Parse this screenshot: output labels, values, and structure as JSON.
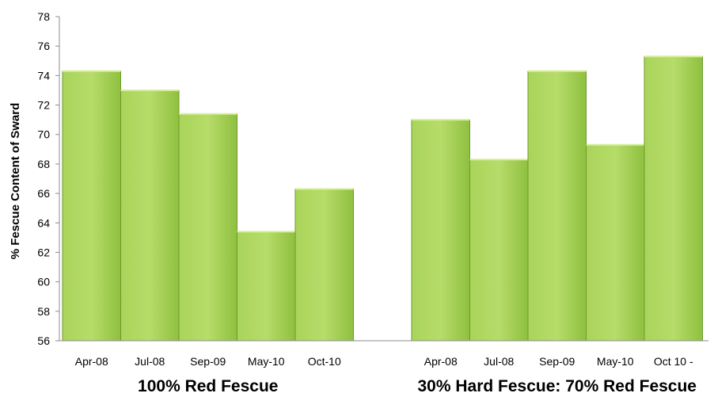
{
  "chart_data": {
    "type": "bar",
    "title": "",
    "ylabel": "% Fescue Content of Sward",
    "ylim": [
      56,
      78
    ],
    "yticks": [
      56,
      58,
      60,
      62,
      64,
      66,
      68,
      70,
      72,
      74,
      76,
      78
    ],
    "grid": false,
    "colors": {
      "bar": "#9acd4a",
      "bar_edge": "#6e9a2e",
      "axis": "#8c8c8c"
    },
    "groups": [
      {
        "label": "100% Red Fescue",
        "categories": [
          "Apr-08",
          "Jul-08",
          "Sep-09",
          "May-10",
          "Oct-10"
        ],
        "values": [
          74.3,
          73.0,
          71.4,
          63.4,
          66.3
        ]
      },
      {
        "label": "30% Hard Fescue: 70% Red Fescue",
        "categories": [
          "Apr-08",
          "Jul-08",
          "Sep-09",
          "May-10",
          "Oct 10 -"
        ],
        "values": [
          71.0,
          68.3,
          74.3,
          69.3,
          75.3
        ]
      }
    ]
  }
}
